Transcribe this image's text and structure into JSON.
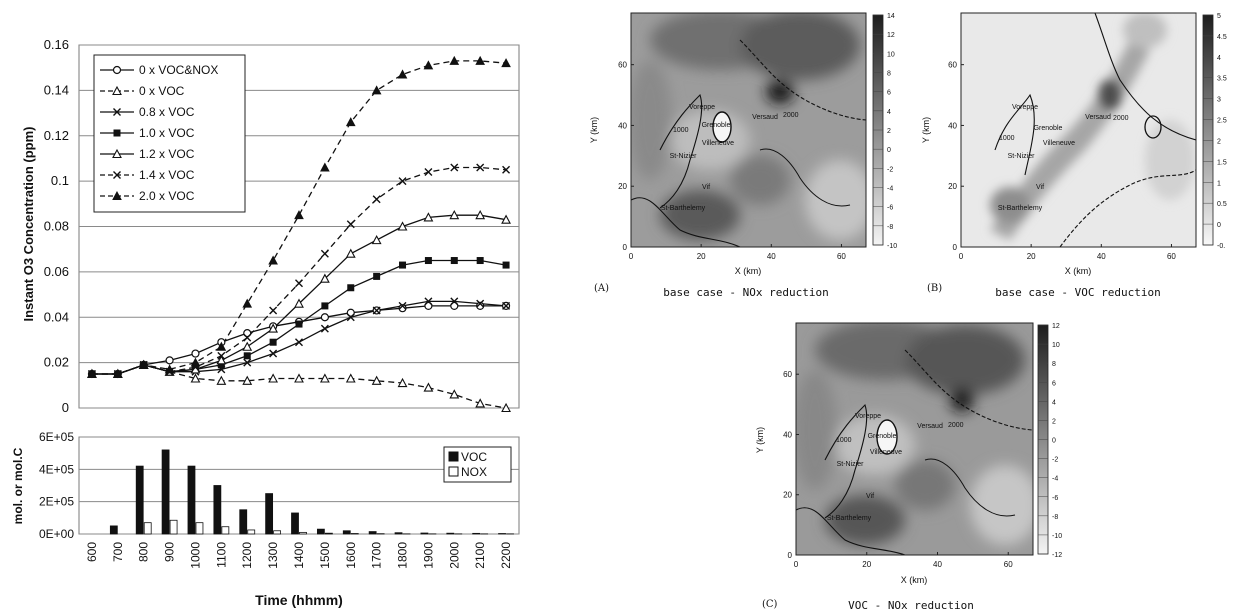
{
  "chart_data": [
    {
      "id": "ozone",
      "type": "line",
      "xlabel": "",
      "ylabel": "Instant O3 Concentration (ppm)",
      "categories": [
        "600",
        "700",
        "800",
        "900",
        "1000",
        "1100",
        "1200",
        "1300",
        "1400",
        "1500",
        "1600",
        "1700",
        "1800",
        "1900",
        "2000",
        "2100",
        "2200"
      ],
      "ylim": [
        0,
        0.16
      ],
      "yticks": [
        "0",
        "0.02",
        "0.04",
        "0.06",
        "0.08",
        "0.1",
        "0.12",
        "0.14",
        "0.16"
      ],
      "grid": true,
      "legend_position": "top-left",
      "series": [
        {
          "name": "0 x VOC&NOX",
          "marker": "circle-open",
          "dash": "solid",
          "values": [
            0.015,
            0.015,
            0.019,
            0.021,
            0.024,
            0.029,
            0.033,
            0.036,
            0.038,
            0.04,
            0.042,
            0.043,
            0.044,
            0.045,
            0.045,
            0.045,
            0.045
          ]
        },
        {
          "name": "0 x VOC",
          "marker": "triangle-open",
          "dash": "dashed",
          "values": [
            0.015,
            0.015,
            0.019,
            0.016,
            0.013,
            0.012,
            0.012,
            0.013,
            0.013,
            0.013,
            0.013,
            0.012,
            0.011,
            0.009,
            0.006,
            0.002,
            0.0
          ]
        },
        {
          "name": "0.8 x VOC",
          "marker": "x",
          "dash": "solid",
          "values": [
            0.015,
            0.015,
            0.019,
            0.016,
            0.016,
            0.017,
            0.02,
            0.024,
            0.029,
            0.035,
            0.04,
            0.043,
            0.045,
            0.047,
            0.047,
            0.046,
            0.045
          ]
        },
        {
          "name": "1.0 x VOC",
          "marker": "square-filled",
          "dash": "solid",
          "values": [
            0.015,
            0.015,
            0.019,
            0.016,
            0.017,
            0.019,
            0.023,
            0.029,
            0.037,
            0.045,
            0.053,
            0.058,
            0.063,
            0.065,
            0.065,
            0.065,
            0.063
          ]
        },
        {
          "name": "1.2 x VOC",
          "marker": "triangle-open",
          "dash": "solid",
          "values": [
            0.015,
            0.015,
            0.019,
            0.016,
            0.017,
            0.021,
            0.027,
            0.035,
            0.046,
            0.057,
            0.068,
            0.074,
            0.08,
            0.084,
            0.085,
            0.085,
            0.083
          ]
        },
        {
          "name": "1.4 x VOC",
          "marker": "x",
          "dash": "dashed",
          "values": [
            0.015,
            0.015,
            0.019,
            0.016,
            0.018,
            0.023,
            0.031,
            0.043,
            0.055,
            0.068,
            0.081,
            0.092,
            0.1,
            0.104,
            0.106,
            0.106,
            0.105
          ]
        },
        {
          "name": "2.0 x VOC",
          "marker": "triangle-filled",
          "dash": "dashed",
          "values": [
            0.015,
            0.015,
            0.019,
            0.017,
            0.02,
            0.027,
            0.046,
            0.065,
            0.085,
            0.106,
            0.126,
            0.14,
            0.147,
            0.151,
            0.153,
            0.153,
            0.152
          ]
        }
      ]
    },
    {
      "id": "emissions",
      "type": "bar",
      "xlabel": "Time (hhmm)",
      "ylabel": "mol. or mol.C",
      "categories": [
        "600",
        "700",
        "800",
        "900",
        "1000",
        "1100",
        "1200",
        "1300",
        "1400",
        "1500",
        "1600",
        "1700",
        "1800",
        "1900",
        "2000",
        "2100",
        "2200"
      ],
      "ylim": [
        0,
        600000
      ],
      "yticks": [
        "0E+00",
        "2E+05",
        "4E+05",
        "6E+05"
      ],
      "grid": true,
      "legend_position": "top-right",
      "series": [
        {
          "name": "VOC",
          "color": "#111111",
          "values": [
            0,
            50000,
            420000,
            520000,
            420000,
            300000,
            150000,
            250000,
            130000,
            30000,
            20000,
            15000,
            8000,
            6000,
            5000,
            4000,
            3000
          ]
        },
        {
          "name": "NOX",
          "color": "#ffffff",
          "values": [
            0,
            0,
            70000,
            85000,
            70000,
            45000,
            25000,
            20000,
            10000,
            5000,
            3000,
            2000,
            1000,
            1000,
            1000,
            1000,
            1000
          ]
        }
      ]
    },
    {
      "id": "map-a",
      "type": "heatmap",
      "panel_label": "(A)",
      "caption": "base case - NOx reduction",
      "xlabel": "X (km)",
      "ylabel": "Y (km)",
      "xticks": [
        "0",
        "20",
        "40",
        "60"
      ],
      "yticks": [
        "0",
        "20",
        "40",
        "60"
      ],
      "colorbar": [
        "14",
        "12",
        "10",
        "8",
        "6",
        "4",
        "2",
        "0",
        "-2",
        "-4",
        "-6",
        "-8",
        "-10"
      ]
    },
    {
      "id": "map-b",
      "type": "heatmap",
      "panel_label": "(B)",
      "caption": "base case - VOC reduction",
      "xlabel": "X (km)",
      "ylabel": "Y (km)",
      "xticks": [
        "0",
        "20",
        "40",
        "60"
      ],
      "yticks": [
        "0",
        "20",
        "40",
        "60"
      ],
      "colorbar": [
        "5",
        "4.5",
        "4",
        "3.5",
        "3",
        "2.5",
        "2",
        "1.5",
        "1",
        "0.5",
        "0",
        "-0."
      ]
    },
    {
      "id": "map-c",
      "type": "heatmap",
      "panel_label": "(C)",
      "caption": "VOC - NOx reduction",
      "xlabel": "X (km)",
      "ylabel": "Y (km)",
      "xticks": [
        "0",
        "20",
        "40",
        "60"
      ],
      "yticks": [
        "0",
        "20",
        "40",
        "60"
      ],
      "colorbar": [
        "12",
        "10",
        "8",
        "6",
        "4",
        "2",
        "0",
        "-2",
        "-4",
        "-6",
        "-8",
        "-10",
        "-12"
      ]
    }
  ],
  "map_places": [
    "Voreppe",
    "Versaud",
    "Grenoble",
    "Villeneuve",
    "St-Nizier",
    "Vif",
    "St-Barthelemy"
  ],
  "contour_labels": [
    "1000",
    "2000"
  ]
}
